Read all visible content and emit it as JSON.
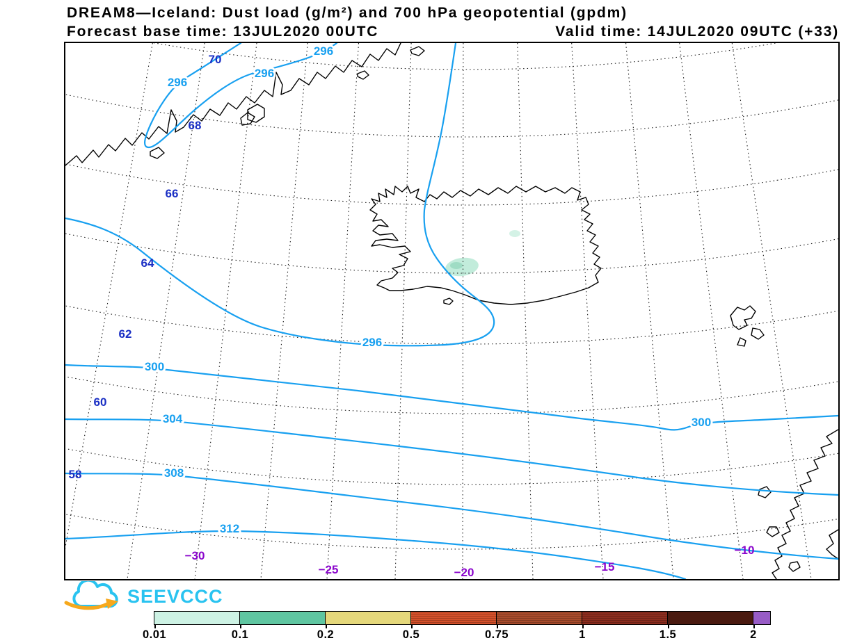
{
  "header": {
    "title": "DREAM8—Iceland: Dust load (g/m²) and 700 hPa geopotential (gpdm)",
    "base_time": "Forecast base time: 13JUL2020 00UTC",
    "valid_time": "Valid time: 14JUL2020 09UTC (+33)"
  },
  "map": {
    "lat_labels": [
      {
        "text": "70"
      },
      {
        "text": "68"
      },
      {
        "text": "66"
      },
      {
        "text": "64"
      },
      {
        "text": "62"
      },
      {
        "text": "60"
      },
      {
        "text": "58"
      }
    ],
    "lon_labels": [
      {
        "text": "−30"
      },
      {
        "text": "−25"
      },
      {
        "text": "−20"
      },
      {
        "text": "−15"
      },
      {
        "text": "−10"
      }
    ],
    "contour_labels": [
      {
        "text": "296"
      },
      {
        "text": "296"
      },
      {
        "text": "296"
      },
      {
        "text": "296"
      },
      {
        "text": "300"
      },
      {
        "text": "304"
      },
      {
        "text": "308"
      },
      {
        "text": "312"
      },
      {
        "text": "300"
      }
    ],
    "colors": {
      "contour": "#18a0f0",
      "lat_label": "#1a2fc4",
      "lon_label": "#8a05cc",
      "coast": "#000000",
      "graticule": "#1c1c1c",
      "dust_light": "#c2ecdb",
      "dust_mid": "#9fdcc4"
    }
  },
  "logo": {
    "text": "SEEVCCC",
    "color": "#29c3f0",
    "arrow_color": "#f6a81c"
  },
  "colorbar": {
    "ticks": [
      "0.01",
      "0.1",
      "0.2",
      "0.5",
      "0.75",
      "1",
      "1.5",
      "2"
    ],
    "segments": [
      {
        "color": "#cdf2e4",
        "striped": false
      },
      {
        "color": "#5fc6a1",
        "striped": false
      },
      {
        "color": "#e5d87b",
        "striped": false
      },
      {
        "color": "#d4502a",
        "striped": true
      },
      {
        "color": "#a84b2b",
        "striped": true
      },
      {
        "color": "#8c2d1e",
        "striped": true
      },
      {
        "color": "#4a1a10",
        "striped": false
      },
      {
        "color": "#985cc6",
        "striped": false
      }
    ]
  },
  "chart_data": {
    "type": "contour-map",
    "title": "DREAM8—Iceland: Dust load (g/m²) and 700 hPa geopotential (gpdm)",
    "forecast_base_time": "13JUL2020 00UTC",
    "valid_time": "14JUL2020 09UTC (+33)",
    "geopotential_700hPa": {
      "units": "gpdm",
      "labeled_contours": [
        296,
        300,
        304,
        308,
        312
      ],
      "contour_interval": 4
    },
    "dust_load": {
      "units": "g/m²",
      "scale_ticks": [
        0.01,
        0.1,
        0.2,
        0.5,
        0.75,
        1,
        1.5,
        2
      ],
      "visible_patch_range": "0.01–0.1"
    },
    "lat_ticks": [
      70,
      68,
      66,
      64,
      62,
      60,
      58
    ],
    "lon_ticks": [
      -30,
      -25,
      -20,
      -15,
      -10
    ]
  }
}
